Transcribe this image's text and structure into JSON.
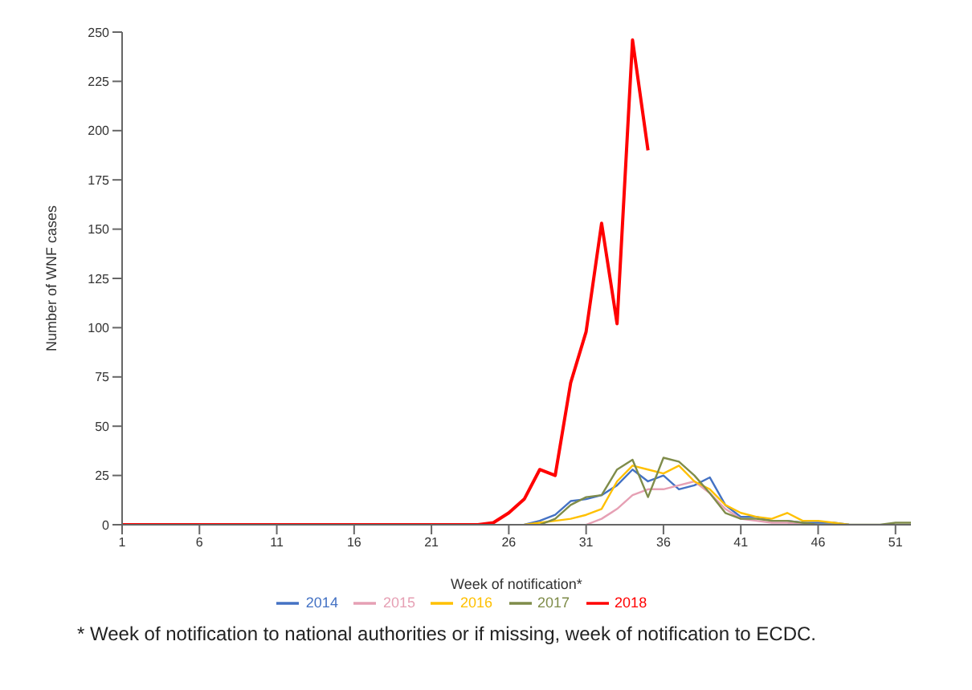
{
  "chart_data": {
    "type": "line",
    "xlabel": "Week of notification*",
    "ylabel": "Number of WNF cases",
    "annotations": [
      "* Week of notification to national authorities or if missing, week of notification to ECDC."
    ],
    "x": [
      1,
      2,
      3,
      4,
      5,
      6,
      7,
      8,
      9,
      10,
      11,
      12,
      13,
      14,
      15,
      16,
      17,
      18,
      19,
      20,
      21,
      22,
      23,
      24,
      25,
      26,
      27,
      28,
      29,
      30,
      31,
      32,
      33,
      34,
      35,
      36,
      37,
      38,
      39,
      40,
      41,
      42,
      43,
      44,
      45,
      46,
      47,
      48,
      49,
      50,
      51,
      52
    ],
    "series": [
      {
        "name": "2014",
        "color": "#4472c4",
        "values": [
          null,
          null,
          null,
          null,
          null,
          null,
          null,
          null,
          null,
          null,
          null,
          null,
          null,
          null,
          null,
          null,
          null,
          null,
          null,
          null,
          null,
          null,
          null,
          null,
          null,
          null,
          0,
          2,
          5,
          12,
          13,
          15,
          20,
          28,
          22,
          25,
          18,
          20,
          24,
          10,
          4,
          4,
          2,
          2,
          1,
          1,
          1,
          0,
          null,
          null,
          null,
          null
        ]
      },
      {
        "name": "2015",
        "color": "#e6a0b4",
        "values": [
          null,
          null,
          null,
          null,
          null,
          null,
          null,
          null,
          null,
          null,
          null,
          null,
          null,
          null,
          null,
          null,
          null,
          null,
          null,
          null,
          null,
          null,
          null,
          null,
          null,
          null,
          null,
          null,
          null,
          null,
          0,
          3,
          8,
          15,
          18,
          18,
          20,
          22,
          16,
          8,
          3,
          2,
          1,
          1,
          0,
          null,
          null,
          null,
          null,
          null,
          null,
          null
        ]
      },
      {
        "name": "2016",
        "color": "#ffc000",
        "values": [
          null,
          null,
          null,
          null,
          null,
          null,
          null,
          null,
          null,
          null,
          null,
          null,
          null,
          null,
          null,
          null,
          null,
          null,
          null,
          null,
          null,
          null,
          null,
          null,
          null,
          null,
          0,
          1,
          2,
          3,
          5,
          8,
          22,
          30,
          28,
          26,
          30,
          22,
          18,
          10,
          6,
          4,
          3,
          6,
          2,
          2,
          1,
          0,
          null,
          null,
          null,
          null
        ]
      },
      {
        "name": "2017",
        "color": "#7f8c4a",
        "values": [
          null,
          null,
          null,
          null,
          null,
          null,
          null,
          null,
          null,
          null,
          null,
          null,
          null,
          null,
          null,
          null,
          null,
          null,
          null,
          null,
          null,
          null,
          null,
          null,
          null,
          null,
          null,
          0,
          3,
          10,
          14,
          15,
          28,
          33,
          14,
          34,
          32,
          25,
          16,
          6,
          3,
          3,
          2,
          2,
          1,
          0,
          0,
          0,
          0,
          0,
          1,
          1
        ]
      },
      {
        "name": "2018",
        "color": "#ff0000",
        "values": [
          0,
          0,
          0,
          0,
          0,
          0,
          0,
          0,
          0,
          0,
          0,
          0,
          0,
          0,
          0,
          0,
          0,
          0,
          0,
          0,
          0,
          0,
          0,
          0,
          1,
          6,
          13,
          28,
          25,
          72,
          98,
          153,
          102,
          246,
          190,
          null,
          null,
          null,
          null,
          null,
          null,
          null,
          null,
          null,
          null,
          null,
          null,
          null,
          null,
          null,
          null,
          null
        ]
      }
    ],
    "xlim": [
      1,
      52
    ],
    "xticks": [
      1,
      6,
      11,
      16,
      21,
      26,
      31,
      36,
      41,
      46,
      51
    ],
    "ylim": [
      0,
      250
    ],
    "yticks": [
      0,
      25,
      50,
      75,
      100,
      125,
      150,
      175,
      200,
      225,
      250
    ],
    "grid": false,
    "legend": "bottom",
    "marker": "none",
    "line_style": "solid"
  }
}
